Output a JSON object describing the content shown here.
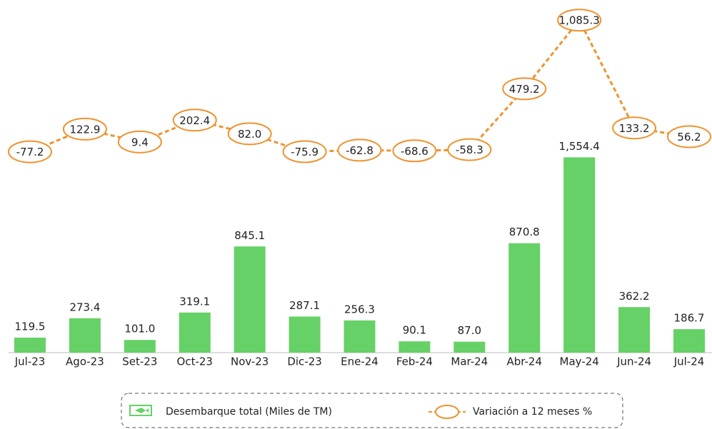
{
  "chart_data": {
    "type": "bar-line",
    "categories": [
      "Jul-23",
      "Ago-23",
      "Set-23",
      "Oct-23",
      "Nov-23",
      "Dic-23",
      "Ene-24",
      "Feb-24",
      "Mar-24",
      "Abr-24",
      "May-24",
      "Jun-24",
      "Jul-24"
    ],
    "ylim": [
      0,
      2750
    ],
    "y2lim": [
      -1850,
      1200
    ],
    "legend": "bottom",
    "series": [
      {
        "name": "Desembarque total (Miles de TM)",
        "type": "bar",
        "color": "#66d166",
        "values": [
          119.5,
          273.4,
          101.0,
          319.1,
          845.1,
          287.1,
          256.3,
          90.1,
          87.0,
          870.8,
          1554.4,
          362.2,
          186.7
        ],
        "value_labels": [
          "119.5",
          "273.4",
          "101.0",
          "319.1",
          "845.1",
          "287.1",
          "256.3",
          "90.1",
          "87.0",
          "870.8",
          "1,554.4",
          "362.2",
          "186.7"
        ]
      },
      {
        "name": "Variación a 12 meses %",
        "type": "line",
        "axis": "y2",
        "color": "#f0922e",
        "values": [
          -77.2,
          122.9,
          9.4,
          202.4,
          82.0,
          -75.9,
          -62.8,
          -68.6,
          -58.3,
          479.2,
          1085.3,
          133.2,
          56.2
        ],
        "value_labels": [
          "-77.2",
          "122.9",
          "9.4",
          "202.4",
          "82.0",
          "-75.9",
          "-62.8",
          "-68.6",
          "-58.3",
          "479.2",
          "1,085.3",
          "133.2",
          "56.2"
        ]
      }
    ]
  }
}
